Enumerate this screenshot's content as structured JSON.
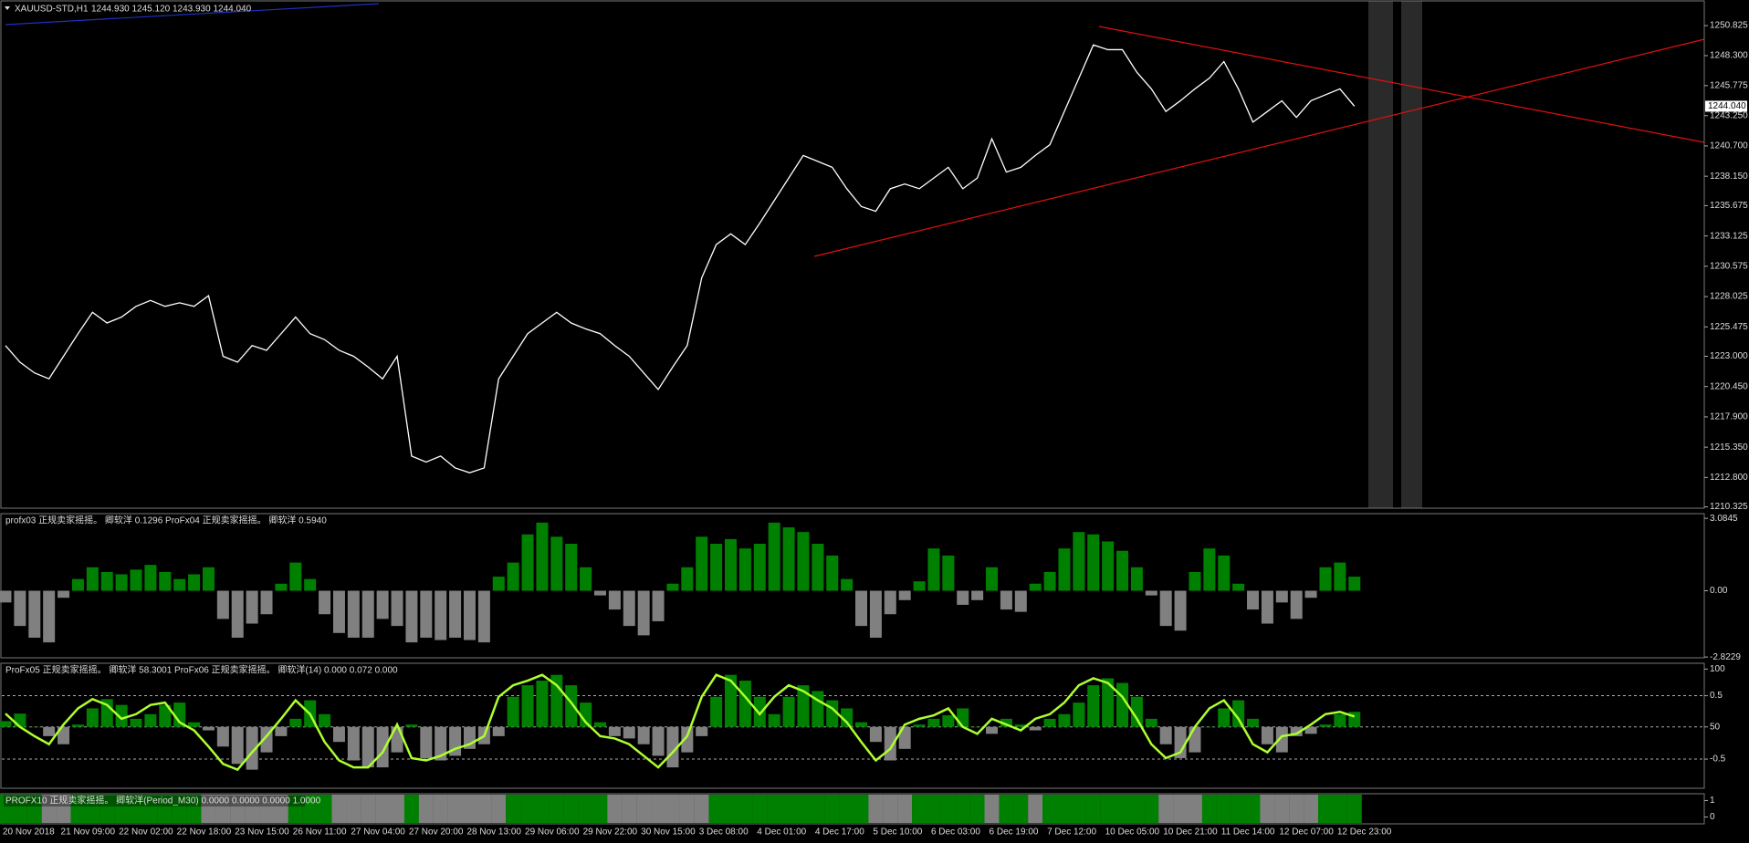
{
  "chart_data": [
    {
      "type": "line",
      "title": "XAUUSD-STD,H1",
      "subtitle": "1244.930 1245.120 1243.930 1244.040",
      "categories": [
        "20 Nov 2018",
        null,
        null,
        null,
        "21 Nov 09:00",
        null,
        null,
        null,
        "22 Nov 02:00",
        null,
        null,
        null,
        "22 Nov 18:00",
        null,
        null,
        null,
        "23 Nov 15:00",
        null,
        null,
        null,
        "26 Nov 11:00",
        null,
        null,
        null,
        "27 Nov 04:00",
        null,
        null,
        null,
        "27 Nov 20:00",
        null,
        null,
        null,
        "28 Nov 13:00",
        null,
        null,
        null,
        "29 Nov 06:00",
        null,
        null,
        null,
        "29 Nov 22:00",
        null,
        null,
        null,
        "30 Nov 15:00",
        null,
        null,
        null,
        "3 Dec 08:00",
        null,
        null,
        null,
        "4 Dec 01:00",
        null,
        null,
        null,
        "4 Dec 17:00",
        null,
        null,
        null,
        "5 Dec 10:00",
        null,
        null,
        null,
        "6 Dec 03:00",
        null,
        null,
        null,
        "6 Dec 19:00",
        null,
        null,
        null,
        "7 Dec 12:00",
        null,
        null,
        null,
        "10 Dec 05:00",
        null,
        null,
        null,
        "10 Dec 21:00",
        null,
        null,
        null,
        "11 Dec 14:00",
        null,
        null,
        null,
        "12 Dec 07:00",
        null,
        null,
        null,
        "12 Dec 23:00",
        null
      ],
      "values": [
        1223.9,
        1222.5,
        1221.6,
        1221.1,
        1223.0,
        1224.9,
        1226.7,
        1225.8,
        1226.3,
        1227.2,
        1227.7,
        1227.2,
        1227.5,
        1227.2,
        1228.1,
        1223.0,
        1222.5,
        1223.9,
        1223.5,
        1224.9,
        1226.3,
        1224.9,
        1224.4,
        1223.5,
        1223.0,
        1222.1,
        1221.1,
        1223.0,
        1214.6,
        1214.1,
        1214.6,
        1213.6,
        1213.2,
        1213.6,
        1221.1,
        1223.0,
        1224.9,
        1225.8,
        1226.7,
        1225.8,
        1225.3,
        1224.9,
        1223.9,
        1223.0,
        1221.6,
        1220.2,
        1222.1,
        1223.9,
        1229.6,
        1232.4,
        1233.3,
        1232.4,
        1234.2,
        1236.1,
        1238.0,
        1239.9,
        1239.4,
        1238.9,
        1237.1,
        1235.6,
        1235.2,
        1237.1,
        1237.5,
        1237.1,
        1238.0,
        1238.9,
        1237.1,
        1238.0,
        1241.3,
        1238.5,
        1238.9,
        1239.9,
        1240.8,
        1243.6,
        1246.4,
        1249.2,
        1248.8,
        1248.8,
        1246.9,
        1245.5,
        1243.6,
        1244.5,
        1245.5,
        1246.4,
        1247.8,
        1245.5,
        1242.7,
        1243.6,
        1244.5,
        1243.1,
        1244.5,
        1245.0,
        1245.5,
        1244.04
      ],
      "last_label": "1244.040",
      "color": "#ffffff",
      "ylim": [
        1210.14,
        1252.98
      ],
      "yticks": [
        1250.825,
        {
          "value": 1248.3,
          "label": "1248.300"
        },
        1245.775,
        {
          "value": 1243.25,
          "label": "1243.250"
        },
        {
          "value": 1240.7,
          "label": "1240.700"
        },
        {
          "value": 1238.15,
          "label": "1238.150"
        },
        1235.675,
        1233.125,
        1230.575,
        1228.025,
        1225.475,
        {
          "value": 1223,
          "label": "1223.000"
        },
        {
          "value": 1220.45,
          "label": "1220.450"
        },
        {
          "value": 1217.9,
          "label": "1217.900"
        },
        {
          "value": 1215.35,
          "label": "1215.350"
        },
        {
          "value": 1212.8,
          "label": "1212.800"
        },
        1210.325
      ]
    },
    {
      "type": "bar",
      "title": "profx03  正规卖家摇摇。 卿软洋 0.1296  ProFx04  正规卖家摇摇。 卿软洋 0.5940",
      "values": [
        -0.5,
        -1.5,
        -2.0,
        -2.2,
        -0.3,
        0.5,
        1.0,
        0.8,
        0.7,
        0.9,
        1.1,
        0.8,
        0.5,
        0.7,
        1.0,
        -1.2,
        -2.0,
        -1.4,
        -1.0,
        0.3,
        1.2,
        0.5,
        -1.0,
        -1.8,
        -2.0,
        -2.0,
        -1.2,
        -1.5,
        -2.2,
        -2.0,
        -2.1,
        -2.0,
        -2.1,
        -2.2,
        0.6,
        1.2,
        2.4,
        2.9,
        2.3,
        2.0,
        1.0,
        -0.2,
        -0.8,
        -1.5,
        -1.9,
        -1.3,
        0.3,
        1.0,
        2.3,
        2.0,
        2.2,
        1.8,
        2.0,
        2.9,
        2.7,
        2.5,
        2.0,
        1.5,
        0.5,
        -1.5,
        -2.0,
        -1.0,
        -0.4,
        0.4,
        1.8,
        1.5,
        -0.6,
        -0.4,
        1.0,
        -0.8,
        -0.9,
        0.3,
        0.8,
        1.8,
        2.5,
        2.4,
        2.1,
        1.7,
        1.0,
        -0.2,
        -1.5,
        -1.7,
        0.8,
        1.8,
        1.5,
        0.3,
        -0.8,
        -1.4,
        -0.5,
        -1.2,
        -0.3,
        1.0,
        1.2,
        0.6
      ],
      "baseline": 0,
      "pos_color": "#008000",
      "neg_color": "#808080",
      "ylim": [
        -2.895,
        3.322
      ],
      "yticks": [
        3.0845,
        {
          "value": 0,
          "label": "0.00"
        },
        -2.8229
      ]
    },
    {
      "type": "bar",
      "title": "ProFx05  正规卖家摇摇。 卿软洋 58.3001  ProFx06  正规卖家摇摇。 卿软洋(14) 0.000 0.072 0.000",
      "values": [
        55,
        61.5,
        50,
        42,
        35,
        52,
        66,
        74,
        69,
        57,
        61,
        69,
        71,
        54,
        47,
        33,
        18,
        13,
        28,
        42,
        57,
        73,
        61,
        37,
        21,
        15,
        15,
        28,
        52,
        23,
        21,
        25,
        31,
        35,
        42,
        76,
        86,
        90,
        95,
        86,
        71,
        54,
        42,
        40,
        35,
        25,
        15,
        28,
        42,
        76,
        95,
        90,
        76,
        61,
        76,
        86,
        81,
        73,
        66,
        54,
        37,
        21,
        31,
        52,
        57,
        60,
        66,
        50,
        44,
        57,
        52,
        47,
        57,
        61,
        71,
        86,
        92,
        88,
        76,
        57,
        35,
        23,
        28,
        50,
        66,
        73,
        57,
        35,
        28,
        42,
        44,
        52,
        61,
        63
      ],
      "signal": [
        61.5,
        50,
        42,
        35,
        52,
        66,
        74,
        69,
        57,
        61,
        69,
        71,
        54,
        47,
        33,
        18,
        13,
        28,
        42,
        57,
        73,
        61,
        37,
        21,
        15,
        15,
        28,
        52,
        23,
        21,
        25,
        31,
        35,
        42,
        76,
        86,
        90,
        95,
        86,
        71,
        54,
        42,
        40,
        35,
        25,
        15,
        28,
        42,
        76,
        95,
        90,
        76,
        61,
        76,
        86,
        81,
        73,
        66,
        54,
        37,
        21,
        31,
        52,
        57,
        60,
        66,
        50,
        44,
        57,
        52,
        47,
        57,
        61,
        71,
        86,
        92,
        88,
        76,
        57,
        35,
        23,
        28,
        50,
        66,
        73,
        57,
        35,
        28,
        42,
        44,
        52,
        61,
        63,
        59
      ],
      "signal_color": "#adff2f",
      "baseline": 50,
      "pos_color": "#008000",
      "neg_color": "#808080",
      "ylim": [
        -3.85,
        105.8
      ],
      "yticks": [
        100,
        50
      ],
      "y2lim": [
        -0.974,
        1.026
      ],
      "y2ticks": [
        0.5,
        -0.5
      ],
      "grid": true
    },
    {
      "type": "state",
      "title": "PROFX10  正规卖家摇摇。 卿软洋(Period_M30) 0.0000 0.0000 0.0000 1.0000",
      "values": [
        1,
        1,
        1,
        0,
        0,
        1,
        1,
        1,
        1,
        1,
        1,
        1,
        1,
        1,
        0,
        0,
        0,
        0,
        0,
        0,
        1,
        1,
        1,
        0,
        0,
        0,
        0,
        0,
        1,
        0,
        0,
        0,
        0,
        0,
        0,
        1,
        1,
        1,
        1,
        1,
        1,
        1,
        0,
        0,
        0,
        0,
        0,
        0,
        0,
        1,
        1,
        1,
        1,
        1,
        1,
        1,
        1,
        1,
        1,
        1,
        0,
        0,
        0,
        1,
        1,
        1,
        1,
        1,
        0,
        1,
        1,
        0,
        1,
        1,
        1,
        1,
        1,
        1,
        1,
        1,
        0,
        0,
        0,
        1,
        1,
        1,
        1,
        0,
        0,
        0,
        0,
        1,
        1,
        1
      ],
      "on_color": "#008000",
      "off_color": "#808080",
      "ylim": [
        -0.47,
        1.47
      ],
      "yticks": [
        1,
        0
      ]
    }
  ]
}
